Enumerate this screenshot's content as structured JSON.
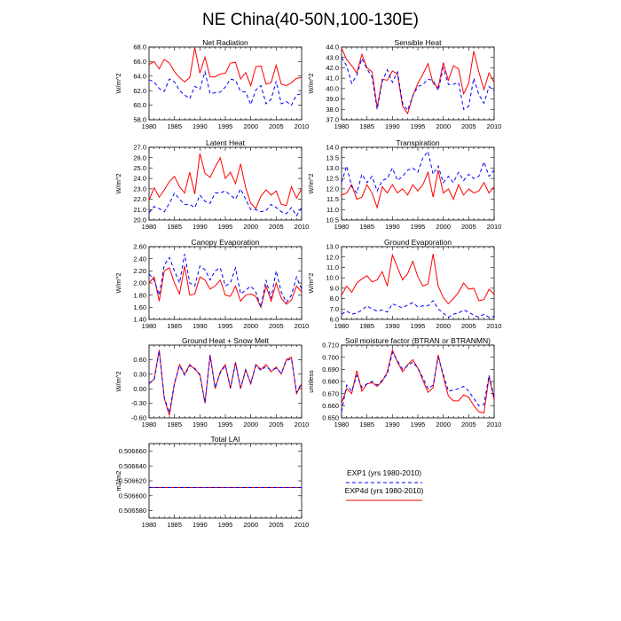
{
  "figure": {
    "title": "NE China(40-50N,100-130E)"
  },
  "legend": [
    {
      "label": "EXP1 (yrs 1980-2010)",
      "color": "#0000ff",
      "dash": true
    },
    {
      "label": "EXP4d (yrs 1980-2010)",
      "color": "#ff0000",
      "dash": false
    }
  ],
  "chart_data": [
    {
      "type": "line",
      "title": "Net Radiation",
      "ylabel": "W/m^2",
      "xlim": [
        1980,
        2010
      ],
      "ylim": [
        58.0,
        68.0
      ],
      "xticks": [
        1980,
        1985,
        1990,
        1995,
        2000,
        2005,
        2010
      ],
      "yticks": [
        "58.0",
        "60.0",
        "62.0",
        "64.0",
        "66.0",
        "68.0"
      ],
      "series": [
        {
          "name": "EXP4d (yrs 1980-2010)",
          "color": "#ff0000",
          "values": [
            65.6,
            66.0,
            65.0,
            66.3,
            65.8,
            64.6,
            63.8,
            63.2,
            63.8,
            67.9,
            64.4,
            66.6,
            63.9,
            63.9,
            64.3,
            64.4,
            65.8,
            65.9,
            63.6,
            64.5,
            62.7,
            65.3,
            65.4,
            62.9,
            63.1,
            65.5,
            62.9,
            62.7,
            63.1,
            63.7,
            63.8
          ]
        },
        {
          "name": "EXP1 (yrs 1980-2010)",
          "color": "#0000ff",
          "dash": true,
          "values": [
            63.5,
            63.2,
            62.3,
            61.9,
            63.6,
            63.2,
            62.0,
            61.4,
            60.9,
            62.6,
            62.2,
            64.6,
            61.6,
            61.7,
            61.8,
            62.5,
            63.6,
            63.4,
            61.9,
            61.8,
            60.1,
            62.1,
            62.7,
            60.2,
            60.8,
            63.3,
            60.2,
            60.5,
            60.0,
            61.4,
            61.6
          ]
        }
      ]
    },
    {
      "type": "line",
      "title": "Sensible Heat",
      "ylabel": "W/m^2",
      "xlim": [
        1980,
        2010
      ],
      "ylim": [
        37.0,
        44.0
      ],
      "xticks": [
        1980,
        1985,
        1990,
        1995,
        2000,
        2005,
        2010
      ],
      "yticks": [
        "37.0",
        "38.0",
        "39.0",
        "40.0",
        "41.0",
        "42.0",
        "43.0",
        "44.0"
      ],
      "series": [
        {
          "name": "EXP4d (yrs 1980-2010)",
          "color": "#ff0000",
          "values": [
            43.9,
            42.8,
            42.2,
            41.5,
            43.3,
            42.0,
            41.6,
            38.2,
            40.9,
            40.8,
            41.7,
            41.4,
            38.3,
            37.6,
            39.3,
            40.5,
            41.4,
            42.4,
            40.5,
            40.1,
            42.5,
            40.8,
            42.2,
            41.9,
            39.5,
            40.5,
            43.6,
            41.6,
            39.9,
            41.5,
            40.6
          ]
        },
        {
          "name": "EXP1 (yrs 1980-2010)",
          "color": "#0000ff",
          "dash": true,
          "values": [
            43.0,
            42.2,
            40.5,
            41.3,
            42.9,
            41.9,
            41.1,
            38.0,
            40.7,
            41.8,
            40.6,
            41.6,
            38.6,
            37.9,
            39.3,
            40.2,
            40.4,
            40.9,
            40.8,
            39.8,
            42.0,
            40.4,
            40.4,
            40.6,
            38.0,
            38.3,
            41.0,
            39.4,
            38.6,
            40.2,
            39.8
          ]
        }
      ]
    },
    {
      "type": "line",
      "title": "Latent Heat",
      "ylabel": "W/m^2",
      "xlim": [
        1980,
        2010
      ],
      "ylim": [
        20.0,
        27.0
      ],
      "xticks": [
        1980,
        1985,
        1990,
        1995,
        2000,
        2005,
        2010
      ],
      "yticks": [
        "20.0",
        "21.0",
        "22.0",
        "23.0",
        "24.0",
        "25.0",
        "26.0",
        "27.0"
      ],
      "series": [
        {
          "name": "EXP4d (yrs 1980-2010)",
          "color": "#ff0000",
          "values": [
            21.9,
            23.1,
            22.2,
            22.9,
            23.7,
            24.2,
            23.2,
            22.6,
            24.6,
            22.5,
            26.4,
            24.5,
            24.1,
            25.1,
            26.0,
            24.0,
            24.6,
            23.5,
            25.4,
            23.1,
            21.6,
            21.1,
            22.3,
            22.9,
            22.4,
            22.8,
            21.5,
            21.4,
            23.2,
            22.1,
            23.0
          ]
        },
        {
          "name": "EXP1 (yrs 1980-2010)",
          "color": "#0000ff",
          "dash": true,
          "values": [
            20.7,
            21.3,
            21.1,
            20.8,
            21.6,
            22.6,
            22.0,
            21.5,
            21.5,
            21.2,
            22.4,
            21.8,
            21.6,
            22.6,
            22.6,
            22.8,
            22.4,
            22.0,
            23.0,
            22.0,
            21.0,
            21.0,
            20.8,
            20.9,
            21.5,
            21.2,
            20.8,
            20.6,
            21.2,
            20.4,
            21.2
          ]
        }
      ]
    },
    {
      "type": "line",
      "title": "Transpiration",
      "ylabel": "W/m^2",
      "xlim": [
        1980,
        2010
      ],
      "ylim": [
        10.5,
        14.0
      ],
      "xticks": [
        1980,
        1985,
        1990,
        1995,
        2000,
        2005,
        2010
      ],
      "yticks": [
        "10.5",
        "11.0",
        "11.5",
        "12.0",
        "12.5",
        "13.0",
        "13.5",
        "14.0"
      ],
      "series": [
        {
          "name": "EXP4d (yrs 1980-2010)",
          "color": "#ff0000",
          "values": [
            11.7,
            11.8,
            12.2,
            11.5,
            11.6,
            12.2,
            11.8,
            11.1,
            12.1,
            11.8,
            12.2,
            11.8,
            12.0,
            11.7,
            12.2,
            11.9,
            12.2,
            12.8,
            11.6,
            12.9,
            11.8,
            12.0,
            11.5,
            12.2,
            11.7,
            12.0,
            11.8,
            11.9,
            12.3,
            11.8,
            12.1
          ]
        },
        {
          "name": "EXP1 (yrs 1980-2010)",
          "color": "#0000ff",
          "dash": true,
          "values": [
            12.3,
            13.1,
            12.1,
            11.8,
            12.7,
            12.3,
            12.6,
            11.9,
            12.4,
            12.5,
            13.0,
            12.4,
            12.6,
            12.9,
            13.0,
            12.8,
            13.5,
            13.8,
            12.7,
            13.1,
            12.3,
            12.6,
            12.3,
            12.8,
            12.4,
            12.7,
            12.5,
            12.6,
            13.3,
            12.6,
            12.9
          ]
        }
      ]
    },
    {
      "type": "line",
      "title": "Canopy Evaporation",
      "ylabel": "W/m^2",
      "xlim": [
        1980,
        2010
      ],
      "ylim": [
        1.4,
        2.6
      ],
      "xticks": [
        1980,
        1985,
        1990,
        1995,
        2000,
        2005,
        2010
      ],
      "yticks": [
        "1.40",
        "1.60",
        "1.80",
        "2.00",
        "2.20",
        "2.40",
        "2.60"
      ],
      "series": [
        {
          "name": "EXP4d (yrs 1980-2010)",
          "color": "#ff0000",
          "values": [
            2.0,
            2.1,
            1.7,
            2.2,
            2.25,
            2.0,
            1.82,
            2.28,
            1.8,
            1.82,
            2.1,
            2.05,
            1.9,
            1.95,
            2.05,
            1.8,
            1.78,
            1.95,
            1.7,
            1.8,
            1.82,
            1.78,
            1.6,
            1.95,
            1.7,
            2.0,
            1.75,
            1.65,
            1.72,
            1.95,
            1.85
          ]
        },
        {
          "name": "EXP1 (yrs 1980-2010)",
          "color": "#0000ff",
          "dash": true,
          "values": [
            2.15,
            2.05,
            1.8,
            2.3,
            2.42,
            2.2,
            2.0,
            2.48,
            2.0,
            1.95,
            2.28,
            2.22,
            2.05,
            2.2,
            2.25,
            1.95,
            2.0,
            2.25,
            1.82,
            1.88,
            1.95,
            1.85,
            1.6,
            2.05,
            1.75,
            2.2,
            1.85,
            1.68,
            1.8,
            2.1,
            1.9
          ]
        }
      ]
    },
    {
      "type": "line",
      "title": "Ground Evaporation",
      "ylabel": "W/m^2",
      "xlim": [
        1980,
        2010
      ],
      "ylim": [
        6.0,
        13.0
      ],
      "xticks": [
        1980,
        1985,
        1990,
        1995,
        2000,
        2005,
        2010
      ],
      "yticks": [
        "6.0",
        "7.0",
        "8.0",
        "9.0",
        "10.0",
        "11.0",
        "12.0",
        "13.0"
      ],
      "series": [
        {
          "name": "EXP4d (yrs 1980-2010)",
          "color": "#ff0000",
          "values": [
            8.3,
            9.2,
            8.6,
            9.5,
            9.9,
            10.2,
            9.6,
            9.8,
            10.6,
            9.2,
            12.2,
            11.0,
            9.8,
            10.4,
            11.6,
            10.1,
            9.2,
            9.4,
            12.3,
            9.2,
            8.1,
            7.5,
            8.0,
            8.6,
            9.5,
            8.9,
            9.0,
            7.8,
            7.9,
            8.9,
            8.4
          ]
        },
        {
          "name": "EXP1 (yrs 1980-2010)",
          "color": "#0000ff",
          "dash": true,
          "values": [
            6.5,
            6.8,
            6.5,
            6.6,
            6.9,
            7.3,
            7.0,
            6.8,
            6.9,
            6.7,
            7.5,
            7.3,
            7.1,
            7.4,
            7.6,
            7.2,
            7.3,
            7.3,
            7.8,
            7.0,
            6.6,
            6.2,
            6.5,
            6.6,
            6.9,
            6.7,
            6.4,
            6.2,
            6.5,
            6.2,
            6.3
          ]
        }
      ]
    },
    {
      "type": "line",
      "title": "Ground Heat + Snow Melt",
      "ylabel": "W/m^2",
      "xlim": [
        1980,
        2010
      ],
      "ylim": [
        -0.6,
        0.9
      ],
      "xticks": [
        1980,
        1985,
        1990,
        1995,
        2000,
        2005,
        2010
      ],
      "yticks": [
        "-0.60",
        "-0.30",
        "0.00",
        "0.30",
        "0.60"
      ],
      "ytick_values": [
        -0.6,
        -0.3,
        0.0,
        0.3,
        0.6
      ],
      "series": [
        {
          "name": "EXP4d (yrs 1980-2010)",
          "color": "#ff0000",
          "values": [
            0.1,
            0.2,
            0.8,
            -0.2,
            -0.55,
            0.1,
            0.5,
            0.3,
            0.5,
            0.4,
            0.3,
            -0.3,
            0.7,
            0.0,
            0.35,
            0.5,
            0.0,
            0.55,
            0.0,
            0.4,
            0.1,
            0.5,
            0.4,
            0.5,
            0.35,
            0.45,
            0.3,
            0.6,
            0.65,
            -0.1,
            0.1
          ]
        },
        {
          "name": "EXP1 (yrs 1980-2010)",
          "color": "#0000ff",
          "dash": true,
          "values": [
            0.12,
            0.18,
            0.78,
            -0.18,
            -0.5,
            0.12,
            0.48,
            0.28,
            0.48,
            0.42,
            0.28,
            -0.28,
            0.68,
            0.02,
            0.33,
            0.48,
            0.02,
            0.52,
            0.02,
            0.38,
            0.12,
            0.48,
            0.38,
            0.46,
            0.38,
            0.42,
            0.32,
            0.58,
            0.62,
            -0.08,
            0.12
          ]
        }
      ]
    },
    {
      "type": "line",
      "title": "Soil moisture factor (BTRAN or BTRANMN)",
      "ylabel": "unitless",
      "xlim": [
        1980,
        2010
      ],
      "ylim": [
        0.65,
        0.71
      ],
      "xticks": [
        1980,
        1985,
        1990,
        1995,
        2000,
        2005,
        2010
      ],
      "yticks": [
        "0.650",
        "0.660",
        "0.670",
        "0.680",
        "0.690",
        "0.700",
        "0.710"
      ],
      "series": [
        {
          "name": "EXP4d (yrs 1980-2010)",
          "color": "#ff0000",
          "values": [
            0.662,
            0.674,
            0.67,
            0.689,
            0.672,
            0.678,
            0.679,
            0.676,
            0.68,
            0.688,
            0.706,
            0.696,
            0.688,
            0.694,
            0.698,
            0.691,
            0.681,
            0.671,
            0.675,
            0.702,
            0.684,
            0.668,
            0.664,
            0.664,
            0.669,
            0.667,
            0.66,
            0.655,
            0.654,
            0.684,
            0.665
          ]
        },
        {
          "name": "EXP1 (yrs 1980-2010)",
          "color": "#0000ff",
          "dash": true,
          "values": [
            0.655,
            0.677,
            0.672,
            0.685,
            0.675,
            0.678,
            0.68,
            0.677,
            0.681,
            0.686,
            0.704,
            0.697,
            0.69,
            0.693,
            0.696,
            0.691,
            0.683,
            0.674,
            0.677,
            0.7,
            0.686,
            0.672,
            0.673,
            0.674,
            0.676,
            0.672,
            0.666,
            0.66,
            0.661,
            0.685,
            0.667
          ]
        }
      ]
    },
    {
      "type": "line",
      "title": "Total LAI",
      "ylabel": "m2/m2",
      "xlim": [
        1980,
        2010
      ],
      "ylim": [
        0.50657,
        0.50667
      ],
      "xticks": [
        1980,
        1985,
        1990,
        1995,
        2000,
        2005,
        2010
      ],
      "yticks": [
        "0.506580",
        "0.506600",
        "0.506620",
        "0.506640",
        "0.506660"
      ],
      "ytick_values": [
        0.50658,
        0.5066,
        0.50662,
        0.50664,
        0.50666
      ],
      "series": [
        {
          "name": "EXP4d (yrs 1980-2010)",
          "color": "#ff0000",
          "constant": 0.506611
        },
        {
          "name": "EXP1 (yrs 1980-2010)",
          "color": "#0000ff",
          "dash": true,
          "constant": 0.506611
        }
      ]
    }
  ]
}
